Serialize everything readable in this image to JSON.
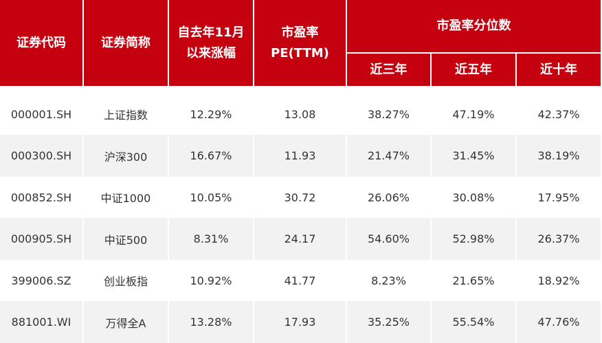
{
  "header": {
    "columns": [
      [
        "证券代码"
      ],
      [
        "证券简称"
      ],
      [
        "自去年11月",
        "以来涨幅"
      ],
      [
        "市盈率",
        "PE(TTM)"
      ]
    ],
    "group": "市盈率分位数",
    "subcolumns": [
      "近三年",
      "近五年",
      "近十年"
    ]
  },
  "table": {
    "rows": [
      [
        "000001.SH",
        "上证指数",
        "12.29%",
        "13.08",
        "38.27%",
        "47.19%",
        "42.37%"
      ],
      [
        "000300.SH",
        "沪深300",
        "16.67%",
        "11.93",
        "21.47%",
        "31.45%",
        "38.19%"
      ],
      [
        "000852.SH",
        "中证1000",
        "10.05%",
        "30.72",
        "26.06%",
        "30.08%",
        "17.95%"
      ],
      [
        "000905.SH",
        "中证500",
        "8.31%",
        "24.17",
        "54.60%",
        "52.98%",
        "26.37%"
      ],
      [
        "399006.SZ",
        "创业板指",
        "10.92%",
        "41.77",
        "8.23%",
        "21.65%",
        "18.92%"
      ],
      [
        "881001.WI",
        "万得全A",
        "13.28%",
        "17.93",
        "35.25%",
        "55.54%",
        "47.76%"
      ]
    ]
  }
}
